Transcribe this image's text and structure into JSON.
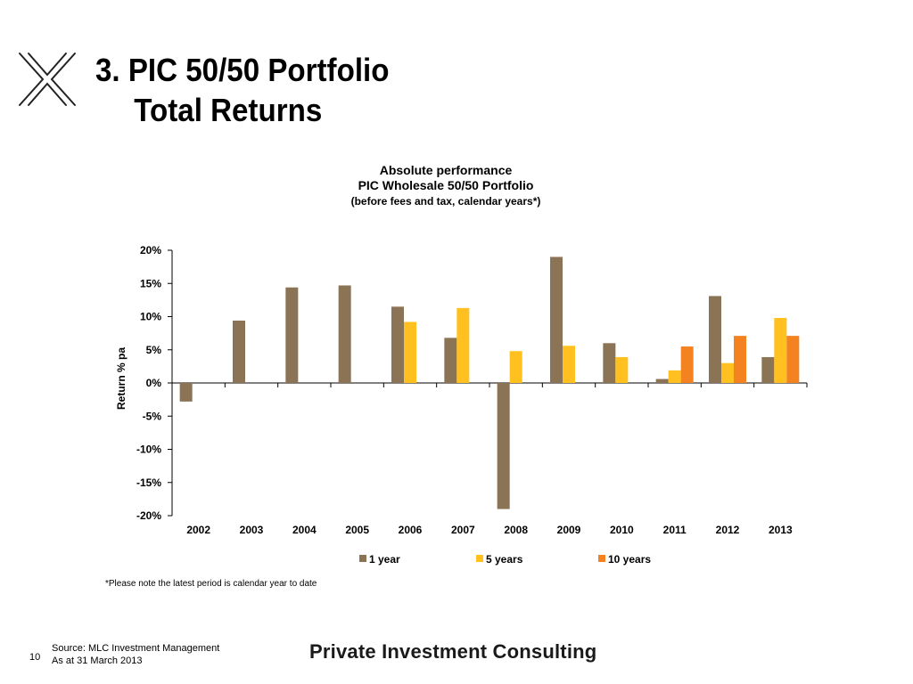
{
  "slide": {
    "title_line1": "3. PIC 50/50 Portfolio",
    "title_line2": "Total Returns",
    "footnote": "*Please note the latest period is calendar year to date",
    "page_number": "10",
    "source_line1": "Source: MLC Investment Management",
    "source_line2": "As at 31 March 2013",
    "brand": "Private Investment Consulting"
  },
  "chart_data": {
    "type": "bar",
    "title": "Absolute performance",
    "subtitle": "PIC Wholesale 50/50 Portfolio",
    "subtitle2": "(before fees and tax, calendar years*)",
    "xlabel": "",
    "ylabel": "Return % pa",
    "ylim": [
      -20,
      20
    ],
    "yticks": [
      20,
      15,
      10,
      5,
      0,
      -5,
      -10,
      -15,
      -20
    ],
    "ytick_labels": [
      "20%",
      "15%",
      "10%",
      "5%",
      "0%",
      "-5%",
      "-10%",
      "-15%",
      "-20%"
    ],
    "categories": [
      "2002",
      "2003",
      "2004",
      "2005",
      "2006",
      "2007",
      "2008",
      "2009",
      "2010",
      "2011",
      "2012",
      "2013"
    ],
    "series": [
      {
        "name": "1 year",
        "color": "#8B7355",
        "values": [
          -2.8,
          9.4,
          14.4,
          14.7,
          11.5,
          6.8,
          -19.0,
          19.0,
          6.0,
          0.6,
          13.1,
          3.9
        ]
      },
      {
        "name": "5 years",
        "color": "#FFC020",
        "values": [
          null,
          null,
          null,
          null,
          9.2,
          11.3,
          4.8,
          5.6,
          3.9,
          1.9,
          3.0,
          9.8
        ]
      },
      {
        "name": "10 years",
        "color": "#F58220",
        "values": [
          null,
          null,
          null,
          null,
          null,
          null,
          null,
          null,
          null,
          5.5,
          7.1,
          7.1
        ]
      }
    ],
    "grid": false,
    "legend_position": "bottom"
  }
}
